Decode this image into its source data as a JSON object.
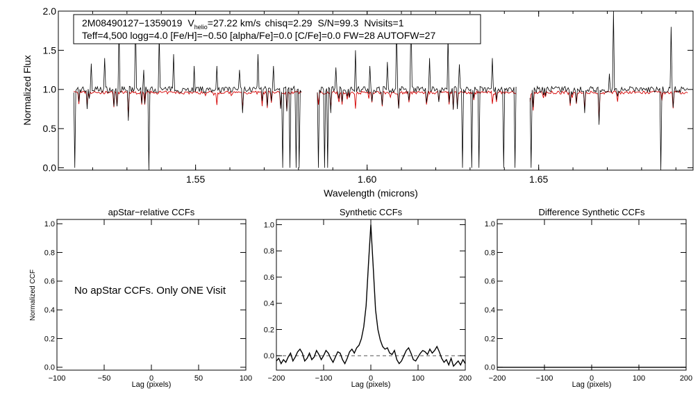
{
  "colors": {
    "observed": "#000000",
    "model": "#d40000",
    "axis": "#000000",
    "dashed": "#555555"
  },
  "chart_data": [
    {
      "id": "spectrum",
      "type": "line",
      "xlabel": "Wavelength (microns)",
      "ylabel": "Normalized Flux",
      "xlim": [
        1.51,
        1.695
      ],
      "ylim": [
        -0.03,
        2.0
      ],
      "xticks": [
        1.55,
        1.6,
        1.65
      ],
      "xtick_labels": [
        "1.55",
        "1.60",
        "1.65"
      ],
      "yticks": [
        0.0,
        0.5,
        1.0,
        1.5,
        2.0
      ],
      "ytick_labels": [
        "0.0",
        "0.5",
        "1.0",
        "1.5",
        "2.0"
      ],
      "chips": [
        [
          1.5145,
          1.5808
        ],
        [
          1.5855,
          1.6435
        ],
        [
          1.6475,
          1.6935
        ]
      ],
      "continuum": 1.0,
      "spikes": [
        [
          1.5195,
          1.33
        ],
        [
          1.5235,
          1.4
        ],
        [
          1.5278,
          1.8
        ],
        [
          1.5325,
          1.95
        ],
        [
          1.5348,
          1.25
        ],
        [
          1.5395,
          1.7
        ],
        [
          1.5435,
          1.45
        ],
        [
          1.5497,
          1.3
        ],
        [
          1.5562,
          1.3
        ],
        [
          1.5628,
          1.25
        ],
        [
          1.5682,
          1.45
        ],
        [
          1.5728,
          1.3
        ],
        [
          1.591,
          1.28
        ],
        [
          1.5965,
          1.5
        ],
        [
          1.6008,
          1.3
        ],
        [
          1.6058,
          1.35
        ],
        [
          1.6085,
          1.85
        ],
        [
          1.6128,
          2.0
        ],
        [
          1.6182,
          1.4
        ],
        [
          1.6235,
          1.7
        ],
        [
          1.6268,
          1.32
        ],
        [
          1.6365,
          1.4
        ],
        [
          1.6718,
          2.0
        ],
        [
          1.6705,
          1.2
        ],
        [
          1.6885,
          1.8
        ]
      ],
      "dips": [
        [
          1.5148,
          0.0
        ],
        [
          1.5365,
          -0.1
        ],
        [
          1.5755,
          0.0
        ],
        [
          1.5775,
          0.0
        ],
        [
          1.5792,
          0.0
        ],
        [
          1.5802,
          0.0
        ],
        [
          1.5858,
          0.0
        ],
        [
          1.5875,
          0.0
        ],
        [
          1.5885,
          0.0
        ],
        [
          1.6278,
          0.0
        ],
        [
          1.6305,
          0.0
        ],
        [
          1.6325,
          0.0
        ],
        [
          1.6398,
          0.0
        ],
        [
          1.6432,
          0.0
        ],
        [
          1.6478,
          0.0
        ],
        [
          1.6855,
          -0.1
        ],
        [
          1.5185,
          0.75
        ],
        [
          1.5305,
          0.6
        ],
        [
          1.5638,
          0.7
        ],
        [
          1.5895,
          0.7
        ],
        [
          1.6262,
          0.75
        ],
        [
          1.6635,
          0.7
        ],
        [
          1.6675,
          0.55
        ]
      ],
      "legend": {
        "line1": {
          "star_id": "2M08490127−1359019",
          "v_symbol": "V",
          "v_sub": "helio",
          "v_value": "=27.22 km/s",
          "chisq": "chisq=2.29",
          "sn": "S/N=99.3",
          "nvisits": "Nvisits=1"
        },
        "line2": "Teff=4,500 logg=4.0 [Fe/H]=−0.50 [alpha/Fe]=0.0 [C/Fe]=0.0 FW=28 AUTOFW=27"
      },
      "series": [
        {
          "name": "observed spectrum",
          "color": "#000000"
        },
        {
          "name": "model spectrum",
          "color": "#d40000"
        }
      ]
    },
    {
      "id": "apstar",
      "type": "line",
      "title": "apStar−relative CCFs",
      "xlabel": "Lag (pixels)",
      "ylabel": "Normalized CCF",
      "xlim": [
        -100,
        100
      ],
      "ylim": [
        -0.02,
        1.03
      ],
      "xticks": [
        -100,
        -50,
        0,
        50,
        100
      ],
      "xtick_labels": [
        "−100",
        "−50",
        "0",
        "50",
        "100"
      ],
      "yticks": [
        0.0,
        0.2,
        0.4,
        0.6,
        0.8,
        1.0
      ],
      "ytick_labels": [
        "0.0",
        "0.2",
        "0.4",
        "0.6",
        "0.8",
        "1.0"
      ],
      "annotation": "No apStar CCFs.  Only ONE Visit",
      "series": []
    },
    {
      "id": "synthetic",
      "type": "line",
      "title": "Synthetic CCFs",
      "xlabel": "Lag (pixels)",
      "xlim": [
        -200,
        200
      ],
      "ylim": [
        -0.11,
        1.04
      ],
      "xticks": [
        -200,
        -100,
        0,
        100,
        200
      ],
      "xtick_labels": [
        "−200",
        "−100",
        "0",
        "100",
        "200"
      ],
      "yticks": [
        0.0,
        0.2,
        0.4,
        0.6,
        0.8,
        1.0
      ],
      "ytick_labels": [
        "0.0",
        "0.2",
        "0.4",
        "0.6",
        "0.8",
        "1.0"
      ],
      "baseline": 0.0,
      "series": [
        {
          "name": "synthetic CCF",
          "x": [
            -200,
            -195,
            -190,
            -185,
            -180,
            -175,
            -170,
            -165,
            -160,
            -155,
            -150,
            -145,
            -140,
            -135,
            -130,
            -125,
            -120,
            -115,
            -110,
            -105,
            -100,
            -95,
            -90,
            -85,
            -80,
            -75,
            -70,
            -65,
            -60,
            -55,
            -50,
            -45,
            -40,
            -35,
            -30,
            -25,
            -20,
            -15,
            -10,
            -5,
            0,
            5,
            10,
            15,
            20,
            25,
            30,
            35,
            40,
            45,
            50,
            55,
            60,
            65,
            70,
            75,
            80,
            85,
            90,
            95,
            100,
            105,
            110,
            115,
            120,
            125,
            130,
            135,
            140,
            145,
            150,
            155,
            160,
            165,
            170,
            175,
            180,
            185,
            190,
            195,
            200
          ],
          "values": [
            -0.04,
            -0.02,
            -0.06,
            -0.03,
            -0.05,
            -0.01,
            0.02,
            -0.04,
            -0.01,
            0.03,
            0.05,
            0.02,
            -0.04,
            -0.02,
            0.02,
            -0.03,
            -0.01,
            0.04,
            0.01,
            -0.03,
            0.0,
            0.04,
            0.02,
            -0.02,
            -0.05,
            -0.01,
            0.03,
            0.02,
            -0.03,
            -0.06,
            -0.02,
            0.03,
            0.05,
            0.02,
            0.06,
            0.08,
            0.13,
            0.22,
            0.38,
            0.7,
            1.0,
            0.68,
            0.35,
            0.2,
            0.12,
            0.07,
            0.05,
            0.06,
            0.02,
            0.01,
            0.04,
            -0.03,
            -0.06,
            -0.04,
            0.0,
            0.04,
            0.06,
            0.02,
            -0.03,
            -0.04,
            -0.01,
            0.02,
            0.04,
            0.03,
            0.01,
            0.05,
            0.02,
            0.04,
            0.07,
            0.03,
            -0.02,
            -0.05,
            -0.03,
            -0.07,
            -0.02,
            -0.08,
            -0.06,
            -0.04,
            -0.07,
            -0.03,
            -0.06
          ]
        }
      ]
    },
    {
      "id": "difference",
      "type": "line",
      "title": "Difference Synthetic CCFs",
      "xlabel": "Lag (pixels)",
      "xlim": [
        -200,
        200
      ],
      "ylim": [
        -0.02,
        1.03
      ],
      "xticks": [
        -200,
        -100,
        0,
        100,
        200
      ],
      "xtick_labels": [
        "−200",
        "−100",
        "0",
        "100",
        "200"
      ],
      "yticks": [
        0.0,
        0.2,
        0.4,
        0.6,
        0.8,
        1.0
      ],
      "ytick_labels": [
        "0.0",
        "0.2",
        "0.4",
        "0.6",
        "0.8",
        "1.0"
      ],
      "series": [
        {
          "name": "difference CCF",
          "x": [
            -200,
            200
          ],
          "values": [
            0.0,
            0.0
          ]
        }
      ]
    }
  ]
}
